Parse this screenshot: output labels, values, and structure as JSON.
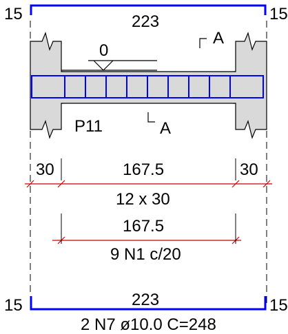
{
  "top_bar": {
    "left_hook": "15",
    "length": "223",
    "right_hook": "15"
  },
  "section_labels": {
    "cut_letter_top": "A",
    "cut_letter_bottom": "A",
    "level": "0",
    "beam_id": "P11"
  },
  "dimensions": {
    "left_support": "30",
    "span": "167.5",
    "right_support": "30",
    "rebar_count": "12 x 30",
    "stirrup_span": "167.5",
    "stirrup_spec": "9 N1 c/20"
  },
  "bottom_bar": {
    "left_hook": "15",
    "length": "223",
    "right_hook": "15",
    "spec": "2 N7 ø10.0  C=248"
  },
  "colors": {
    "rebar": "#0000ff",
    "dimension": "#cc0000",
    "concrete_fill": "#d9d9d9",
    "line": "#000000"
  }
}
